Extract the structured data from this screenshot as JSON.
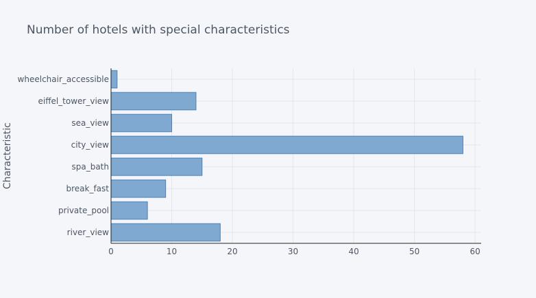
{
  "chart_data": {
    "type": "bar",
    "orientation": "horizontal",
    "title": "Number of hotels with special characteristics",
    "xlabel": "",
    "ylabel": "Characteristic",
    "categories": [
      "wheelchair_accessible",
      "eiffel_tower_view",
      "sea_view",
      "city_view",
      "spa_bath",
      "break_fast",
      "private_pool",
      "river_view"
    ],
    "values": [
      1,
      14,
      10,
      58,
      15,
      9,
      6,
      18
    ],
    "xlim": [
      0,
      61
    ],
    "xticks": [
      0,
      10,
      20,
      30,
      40,
      50,
      60
    ],
    "grid": true,
    "bar_color": "#7fa9d1",
    "bar_edge_color": "#4a82b8",
    "background": "#f5f6fa",
    "grid_color": "#e3e6ee"
  }
}
